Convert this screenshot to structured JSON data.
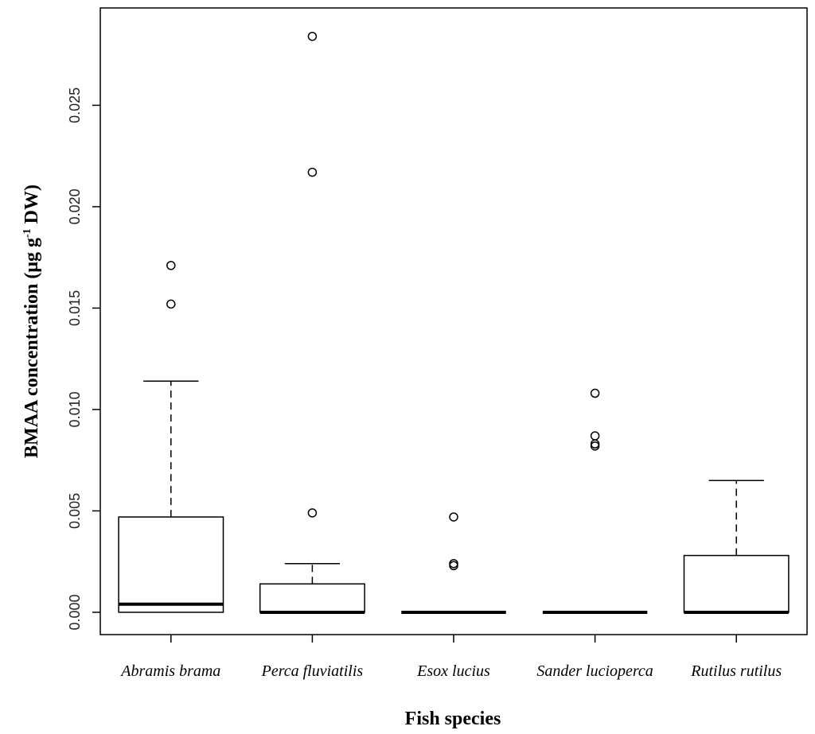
{
  "chart_data": {
    "type": "boxplot",
    "xlabel": "Fish species",
    "ylabel": {
      "prefix": "BMAA concentration (μg g",
      "superscript": "-1",
      "suffix": " DW)"
    },
    "ylim": [
      -0.0011,
      0.0298
    ],
    "yticks": [
      "0.000",
      "0.005",
      "0.010",
      "0.015",
      "0.020",
      "0.025"
    ],
    "grid": false,
    "legend": "none",
    "categories": [
      "Abramis brama",
      "Perca fluviatilis",
      "Esox lucius",
      "Sander lucioperca",
      "Rutilus rutilus"
    ],
    "boxes": [
      {
        "q1": 0.0,
        "median": 0.0004,
        "q3": 0.0047,
        "whisker_low": 0.0,
        "whisker_high": 0.0114,
        "outliers": [
          0.0152,
          0.0171
        ]
      },
      {
        "q1": 0.0,
        "median": 0.0,
        "q3": 0.0014,
        "whisker_low": 0.0,
        "whisker_high": 0.0024,
        "outliers": [
          0.0049,
          0.0217,
          0.0284
        ]
      },
      {
        "q1": 0.0,
        "median": 0.0,
        "q3": 0.0,
        "whisker_low": 0.0,
        "whisker_high": 0.0,
        "outliers": [
          0.0023,
          0.0024,
          0.0047
        ]
      },
      {
        "q1": 0.0,
        "median": 0.0,
        "q3": 0.0,
        "whisker_low": 0.0,
        "whisker_high": 0.0,
        "outliers": [
          0.0082,
          0.0083,
          0.0087,
          0.0108
        ]
      },
      {
        "q1": 0.0,
        "median": 0.0,
        "q3": 0.0028,
        "whisker_low": 0.0,
        "whisker_high": 0.0065,
        "outliers": []
      }
    ]
  }
}
